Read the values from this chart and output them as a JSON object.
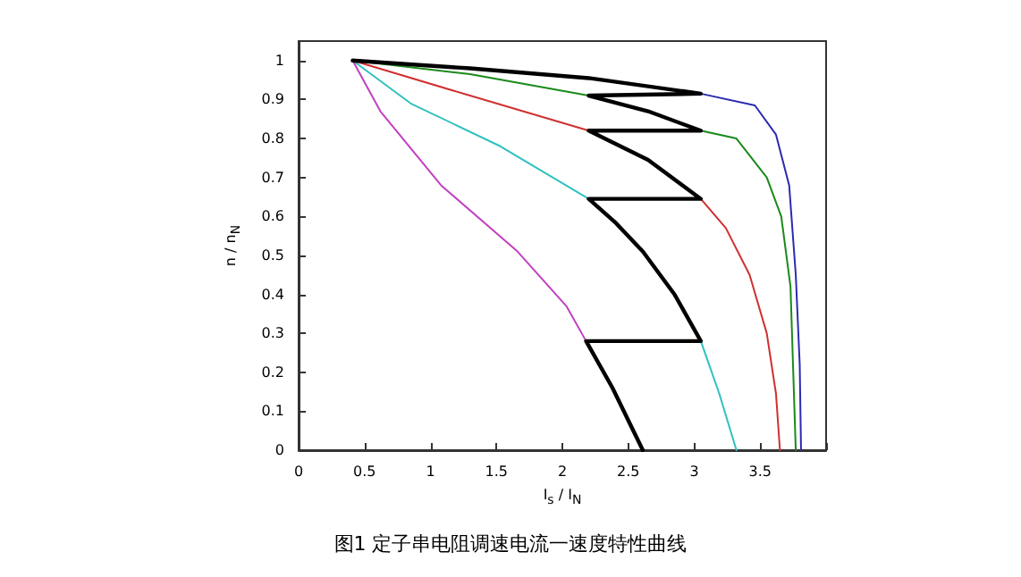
{
  "chart_data": {
    "type": "line",
    "xlabel": "I$_{s}$ / I$_{N}$",
    "ylabel": "n / n$_{N}$",
    "annotations": [
      "图1 定子串电阻调速电流一速度特性曲线"
    ],
    "xlim": [
      0,
      4
    ],
    "xticks": [
      0,
      0.5,
      1,
      1.5,
      2,
      2.5,
      3,
      3.5,
      {
        "value": 4,
        "label": null
      }
    ],
    "ylim": [
      0,
      1.05
    ],
    "yticks": [
      0,
      0.1,
      0.2,
      0.3,
      0.4,
      0.5,
      0.6,
      0.7,
      0.8,
      0.9,
      1
    ],
    "grid": false,
    "marker": "none",
    "line_style": "solid",
    "series": [
      {
        "color": "#2b2bb0",
        "x": [
          3.05,
          3.46,
          3.62,
          3.72,
          3.77,
          3.8,
          3.81
        ],
        "values": [
          0.915,
          0.885,
          0.81,
          0.68,
          0.45,
          0.22,
          0
        ]
      },
      {
        "color": "#1a8a1a",
        "x": [
          0.41,
          1.3,
          2.2,
          2.6,
          3.05,
          3.32,
          3.55,
          3.66,
          3.73,
          3.77
        ],
        "values": [
          1,
          0.965,
          0.91,
          null,
          0.82,
          0.8,
          0.7,
          0.6,
          0.42,
          0
        ]
      },
      {
        "color": "#d03030",
        "x": [
          0.41,
          1.3,
          2.2,
          2.6,
          3.05,
          3.24,
          3.42,
          3.55,
          3.62,
          3.65
        ],
        "values": [
          1,
          0.91,
          0.82,
          null,
          0.645,
          0.57,
          0.45,
          0.3,
          0.145,
          0
        ]
      },
      {
        "color": "#30c0c0",
        "x": [
          0.41,
          0.85,
          1.53,
          2.2,
          2.6,
          3.05,
          3.19,
          3.32
        ],
        "values": [
          1,
          0.89,
          0.78,
          0.645,
          null,
          0.28,
          0.145,
          0
        ]
      },
      {
        "color": "#c040c0",
        "x": [
          0.41,
          0.62,
          1.08,
          1.66,
          2.03,
          2.18
        ],
        "values": [
          1,
          0.87,
          0.68,
          0.51,
          0.37,
          0.28
        ]
      },
      {
        "color": "#000000",
        "x": [
          2.61,
          2.38,
          2.18,
          3.05,
          2.85,
          2.61,
          2.4,
          2.2,
          3.05,
          2.65,
          2.2,
          3.05,
          2.65,
          2.2,
          3.05,
          2.2,
          1.3,
          0.41
        ],
        "values": [
          0,
          0.16,
          0.28,
          0.28,
          0.4,
          0.51,
          0.585,
          0.645,
          0.645,
          0.745,
          0.82,
          0.82,
          0.87,
          0.91,
          0.915,
          0.955,
          0.98,
          1
        ]
      }
    ]
  }
}
